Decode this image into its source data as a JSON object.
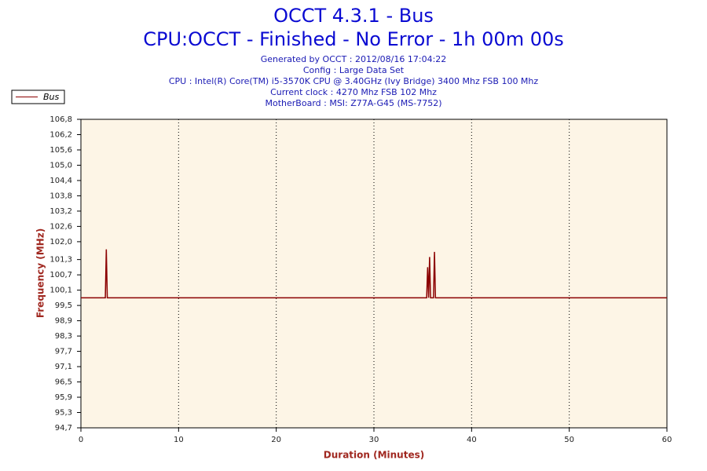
{
  "chart_data": {
    "type": "line",
    "title": "OCCT 4.3.1 - Bus",
    "subtitle": "CPU:OCCT - Finished - No Error - 1h 00m 00s",
    "info": [
      "Generated by OCCT : 2012/08/16 17:04:22",
      "Config : Large Data Set",
      "CPU : Intel(R) Core(TM) i5-3570K CPU @ 3.40GHz (Ivy Bridge) 3400 Mhz FSB 100 Mhz",
      "Current clock : 4270 Mhz FSB 102 Mhz",
      "MotherBoard : MSI: Z77A-G45 (MS-7752)"
    ],
    "x_label": "Duration (Minutes)",
    "y_label": "Frequency (MHz)",
    "x": [
      0,
      2.5,
      2.6,
      2.7,
      35.4,
      35.5,
      35.6,
      35.7,
      35.8,
      36.1,
      36.2,
      36.3,
      60
    ],
    "series": [
      {
        "name": "Bus",
        "color": "#8b0000",
        "values": [
          99.8,
          99.8,
          101.7,
          99.8,
          99.8,
          101.0,
          99.8,
          101.4,
          99.8,
          99.8,
          101.6,
          99.8,
          99.8
        ]
      }
    ],
    "xlim": [
      0,
      60
    ],
    "xticks": [
      0,
      10,
      20,
      30,
      40,
      50,
      60
    ],
    "ylim": [
      94.7,
      106.8
    ],
    "yticks": [
      {
        "value": 94.7,
        "label": "94,7"
      },
      {
        "value": 95.3,
        "label": "95,3"
      },
      {
        "value": 95.9,
        "label": "95,9"
      },
      {
        "value": 96.5,
        "label": "96,5"
      },
      {
        "value": 97.1,
        "label": "97,1"
      },
      {
        "value": 97.7,
        "label": "97,7"
      },
      {
        "value": 98.3,
        "label": "98,3"
      },
      {
        "value": 98.9,
        "label": "98,9"
      },
      {
        "value": 99.5,
        "label": "99,5"
      },
      {
        "value": 100.1,
        "label": "100,1"
      },
      {
        "value": 100.7,
        "label": "100,7"
      },
      {
        "value": 101.3,
        "label": "101,3"
      },
      {
        "value": 102.0,
        "label": "102,0"
      },
      {
        "value": 102.6,
        "label": "102,6"
      },
      {
        "value": 103.2,
        "label": "103,2"
      },
      {
        "value": 103.8,
        "label": "103,8"
      },
      {
        "value": 104.4,
        "label": "104,4"
      },
      {
        "value": 105.0,
        "label": "105,0"
      },
      {
        "value": 105.6,
        "label": "105,6"
      },
      {
        "value": 106.2,
        "label": "106,2"
      },
      {
        "value": 106.8,
        "label": "106,8"
      }
    ],
    "x_grid": true,
    "y_grid": false,
    "legend_position": "top-left"
  }
}
